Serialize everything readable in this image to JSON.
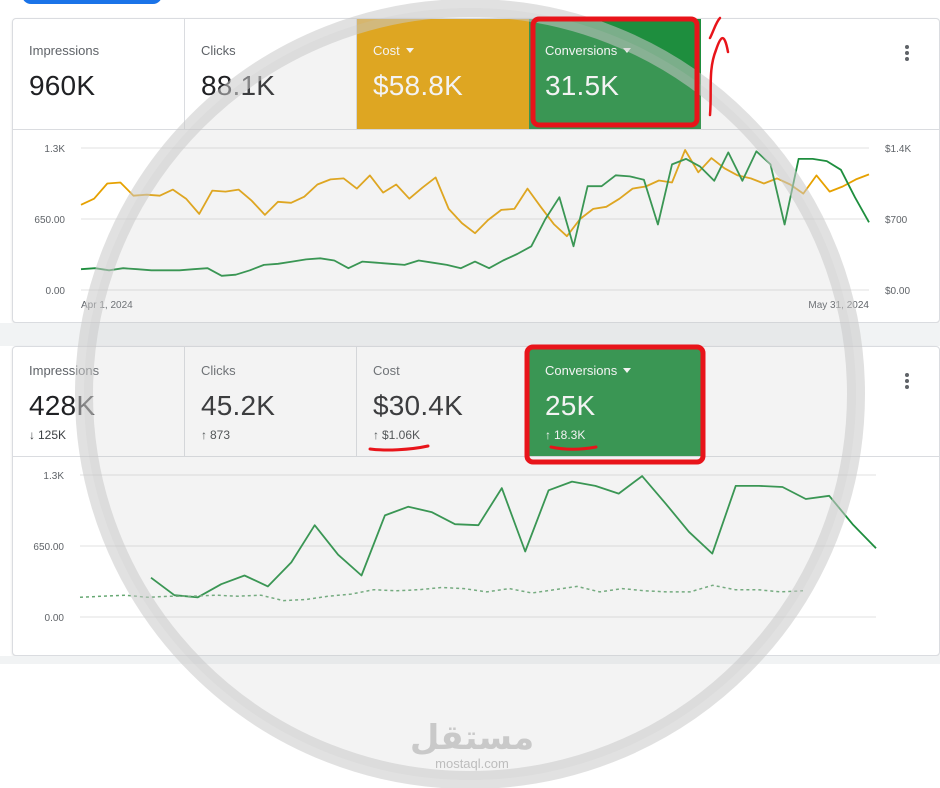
{
  "colors": {
    "green": "#1e8e3e",
    "orange": "#e6a100",
    "annotation_red": "#e8141a",
    "watermark": "#c8c8c8"
  },
  "panel1": {
    "tiles": [
      {
        "label": "Impressions",
        "value": "960K"
      },
      {
        "label": "Clicks",
        "value": "88.1K"
      },
      {
        "label": "Cost",
        "value": "$58.8K",
        "dropdown": true
      },
      {
        "label": "Conversions",
        "value": "31.5K",
        "dropdown": true
      }
    ],
    "menu_icon": "more-vert-icon"
  },
  "panel2": {
    "tiles": [
      {
        "label": "Impressions",
        "value": "428K",
        "delta": "125K",
        "delta_dir": "down"
      },
      {
        "label": "Clicks",
        "value": "45.2K",
        "delta": "873",
        "delta_dir": "up"
      },
      {
        "label": "Cost",
        "value": "$30.4K",
        "delta": "$1.06K",
        "delta_dir": "up"
      },
      {
        "label": "Conversions",
        "value": "25K",
        "delta": "18.3K",
        "delta_dir": "up",
        "dropdown": true
      }
    ],
    "menu_icon": "more-vert-icon"
  },
  "icons": {
    "up_arrow": "↑",
    "down_arrow": "↓"
  },
  "chart_data": [
    {
      "type": "line",
      "y_left_ticks": [
        "1.3K",
        "650.00",
        "0.00"
      ],
      "y_right_ticks": [
        "$1.4K",
        "$700",
        "$0.00"
      ],
      "x_tick_labels": [
        "Apr 1, 2024",
        "May 31, 2024"
      ],
      "ylim_left": [
        0,
        1300
      ],
      "ylim_right": [
        0,
        1400
      ],
      "series": [
        {
          "metric": "Cost",
          "axis": "right",
          "color": "#e6a100",
          "values": [
            840,
            900,
            1050,
            1060,
            930,
            940,
            930,
            990,
            900,
            750,
            980,
            970,
            990,
            880,
            740,
            870,
            860,
            920,
            1040,
            1090,
            1100,
            1000,
            1130,
            960,
            1040,
            900,
            1010,
            1110,
            800,
            660,
            560,
            690,
            790,
            800,
            1000,
            820,
            650,
            530,
            700,
            800,
            820,
            900,
            1000,
            1020,
            1080,
            1060,
            1380,
            1160,
            1300,
            1200,
            1130,
            1100,
            1050,
            1100,
            1040,
            950,
            1130,
            970,
            1020,
            1090,
            1140
          ]
        },
        {
          "metric": "Conversions",
          "axis": "left",
          "color": "#1e8e3e",
          "values": [
            190,
            200,
            180,
            200,
            190,
            180,
            180,
            180,
            190,
            200,
            130,
            140,
            180,
            230,
            240,
            260,
            280,
            290,
            270,
            200,
            260,
            250,
            240,
            230,
            270,
            250,
            230,
            200,
            260,
            200,
            270,
            330,
            400,
            650,
            850,
            400,
            950,
            950,
            1050,
            1040,
            1010,
            600,
            1150,
            1200,
            1130,
            1000,
            1260,
            1000,
            1270,
            1150,
            600,
            1200,
            1200,
            1180,
            1100,
            850,
            620
          ]
        }
      ]
    },
    {
      "type": "line",
      "y_left_ticks": [
        "1.3K",
        "650.00",
        "0.00"
      ],
      "ylim_left": [
        0,
        1300
      ],
      "series": [
        {
          "metric": "Conversions",
          "style": "solid",
          "color": "#1e8e3e",
          "values": [
            360,
            200,
            180,
            300,
            380,
            280,
            500,
            840,
            570,
            380,
            930,
            1010,
            960,
            850,
            840,
            1180,
            600,
            1160,
            1240,
            1200,
            1130,
            1290,
            1040,
            780,
            580,
            1200,
            1200,
            1190,
            1080,
            1110,
            850,
            630
          ]
        },
        {
          "metric": "Conversions (previous period)",
          "style": "dashed",
          "color": "#66a873",
          "values": [
            180,
            190,
            200,
            180,
            190,
            190,
            200,
            190,
            200,
            150,
            160,
            190,
            210,
            250,
            240,
            250,
            270,
            260,
            230,
            260,
            220,
            250,
            280,
            230,
            260,
            240,
            230,
            230,
            290,
            250,
            250,
            230,
            240
          ]
        }
      ]
    }
  ],
  "watermark": {
    "arabic": "مستقل",
    "latin": "mostaql.com"
  }
}
